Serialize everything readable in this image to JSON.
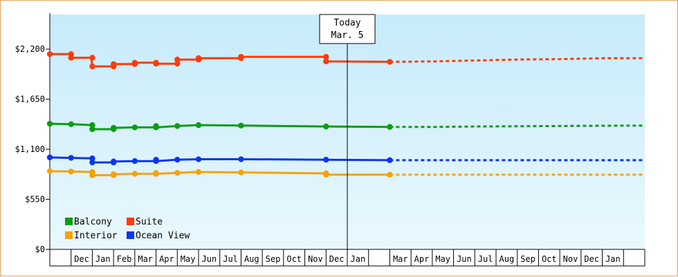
{
  "chart_data": {
    "type": "line",
    "title": "",
    "xlabel": "",
    "ylabel": "",
    "y_ticks": [
      "$0",
      "$550",
      "$1,100",
      "$1,650",
      "$2,200"
    ],
    "y_tick_values": [
      0,
      550,
      1100,
      1650,
      2200
    ],
    "ylim": [
      0,
      2580
    ],
    "grid": false,
    "legend_position": "bottom-left",
    "today_marker": {
      "line1": "Today",
      "line2": "Mar. 5",
      "at_month": 14
    },
    "month_labels": [
      "",
      "Dec",
      "Jan",
      "Feb",
      "Mar",
      "Apr",
      "May",
      "Jun",
      "Jul",
      "Aug",
      "Sep",
      "Oct",
      "Nov",
      "Dec",
      "Jan",
      "",
      "Mar",
      "Apr",
      "May",
      "Jun",
      "Jul",
      "Aug",
      "Sep",
      "Oct",
      "Nov",
      "Dec",
      "Jan",
      ""
    ],
    "xlim_months": [
      0,
      28
    ],
    "series": [
      {
        "name": "Suite",
        "color": "#ff3b0a",
        "history": [
          [
            0.0,
            2145
          ],
          [
            0.15,
            2145
          ],
          [
            1.0,
            2145
          ],
          [
            1.05,
            2105
          ],
          [
            1.95,
            2105
          ],
          [
            2.0,
            2010
          ],
          [
            2.9,
            2010
          ],
          [
            2.95,
            2035
          ],
          [
            3.9,
            2035
          ],
          [
            3.95,
            2050
          ],
          [
            4.95,
            2050
          ],
          [
            5.0,
            2040
          ],
          [
            5.95,
            2040
          ],
          [
            6.0,
            2085
          ],
          [
            6.95,
            2085
          ],
          [
            7.0,
            2100
          ],
          [
            8.95,
            2100
          ],
          [
            9.0,
            2115
          ],
          [
            12.95,
            2115
          ],
          [
            13.0,
            2065
          ],
          [
            16.0,
            2060
          ]
        ],
        "forecast": [
          [
            16.0,
            2060
          ],
          [
            18.0,
            2065
          ],
          [
            20.0,
            2075
          ],
          [
            22.0,
            2085
          ],
          [
            24.0,
            2090
          ],
          [
            26.0,
            2100
          ],
          [
            28.0,
            2100
          ]
        ]
      },
      {
        "name": "Balcony",
        "color": "#0c9d12",
        "history": [
          [
            0.0,
            1380
          ],
          [
            1.0,
            1375
          ],
          [
            1.05,
            1375
          ],
          [
            1.95,
            1365
          ],
          [
            2.0,
            1320
          ],
          [
            2.95,
            1320
          ],
          [
            3.0,
            1335
          ],
          [
            4.0,
            1340
          ],
          [
            5.0,
            1340
          ],
          [
            6.0,
            1355
          ],
          [
            7.0,
            1365
          ],
          [
            9.0,
            1360
          ],
          [
            13.0,
            1350
          ],
          [
            16.0,
            1345
          ]
        ],
        "forecast": [
          [
            16.0,
            1345
          ],
          [
            18.0,
            1345
          ],
          [
            20.0,
            1350
          ],
          [
            22.0,
            1352
          ],
          [
            24.0,
            1355
          ],
          [
            26.0,
            1358
          ],
          [
            28.0,
            1360
          ]
        ]
      },
      {
        "name": "Ocean View",
        "color": "#0b36f2",
        "history": [
          [
            0.0,
            1010
          ],
          [
            1.0,
            1005
          ],
          [
            1.95,
            1000
          ],
          [
            2.0,
            955
          ],
          [
            2.95,
            955
          ],
          [
            3.0,
            965
          ],
          [
            4.0,
            970
          ],
          [
            5.0,
            970
          ],
          [
            6.0,
            985
          ],
          [
            7.0,
            990
          ],
          [
            9.0,
            990
          ],
          [
            13.0,
            985
          ],
          [
            16.0,
            980
          ]
        ],
        "forecast": [
          [
            16.0,
            980
          ],
          [
            20.0,
            980
          ],
          [
            24.0,
            980
          ],
          [
            28.0,
            980
          ]
        ]
      },
      {
        "name": "Interior",
        "color": "#f7a20b",
        "history": [
          [
            0.0,
            860
          ],
          [
            1.0,
            855
          ],
          [
            1.95,
            850
          ],
          [
            2.0,
            815
          ],
          [
            2.95,
            815
          ],
          [
            3.0,
            825
          ],
          [
            4.0,
            830
          ],
          [
            5.0,
            830
          ],
          [
            6.0,
            840
          ],
          [
            7.0,
            850
          ],
          [
            9.0,
            845
          ],
          [
            13.0,
            835
          ],
          [
            13.05,
            820
          ],
          [
            16.0,
            820
          ]
        ],
        "forecast": [
          [
            16.0,
            820
          ],
          [
            20.0,
            820
          ],
          [
            24.0,
            820
          ],
          [
            28.0,
            820
          ]
        ]
      }
    ],
    "markers": {
      "Suite": [
        [
          0.0,
          2145
        ],
        [
          1.0,
          2145
        ],
        [
          1.0,
          2105
        ],
        [
          2.0,
          2105
        ],
        [
          2.0,
          2010
        ],
        [
          3.0,
          2010
        ],
        [
          3.0,
          2035
        ],
        [
          4.0,
          2035
        ],
        [
          4.0,
          2050
        ],
        [
          5.0,
          2050
        ],
        [
          5.0,
          2040
        ],
        [
          6.0,
          2040
        ],
        [
          6.0,
          2085
        ],
        [
          7.0,
          2085
        ],
        [
          7.0,
          2100
        ],
        [
          9.0,
          2100
        ],
        [
          9.0,
          2115
        ],
        [
          13.0,
          2115
        ],
        [
          13.0,
          2065
        ],
        [
          16.0,
          2060
        ]
      ],
      "Balcony": [
        [
          0.0,
          1380
        ],
        [
          1.0,
          1375
        ],
        [
          2.0,
          1365
        ],
        [
          2.0,
          1320
        ],
        [
          3.0,
          1320
        ],
        [
          3.0,
          1335
        ],
        [
          4.0,
          1340
        ],
        [
          5.0,
          1340
        ],
        [
          5.0,
          1355
        ],
        [
          6.0,
          1355
        ],
        [
          7.0,
          1365
        ],
        [
          9.0,
          1360
        ],
        [
          13.0,
          1350
        ],
        [
          16.0,
          1345
        ]
      ],
      "Ocean View": [
        [
          0.0,
          1010
        ],
        [
          1.0,
          1005
        ],
        [
          2.0,
          1000
        ],
        [
          2.0,
          955
        ],
        [
          3.0,
          955
        ],
        [
          3.0,
          965
        ],
        [
          4.0,
          970
        ],
        [
          5.0,
          970
        ],
        [
          5.0,
          985
        ],
        [
          6.0,
          985
        ],
        [
          7.0,
          990
        ],
        [
          9.0,
          990
        ],
        [
          13.0,
          985
        ],
        [
          16.0,
          980
        ]
      ],
      "Interior": [
        [
          0.0,
          860
        ],
        [
          1.0,
          855
        ],
        [
          2.0,
          850
        ],
        [
          2.0,
          815
        ],
        [
          3.0,
          815
        ],
        [
          3.0,
          825
        ],
        [
          4.0,
          830
        ],
        [
          5.0,
          830
        ],
        [
          5.0,
          840
        ],
        [
          6.0,
          840
        ],
        [
          7.0,
          850
        ],
        [
          9.0,
          845
        ],
        [
          13.0,
          835
        ],
        [
          13.0,
          820
        ],
        [
          16.0,
          820
        ]
      ]
    },
    "legend": [
      {
        "name": "Balcony",
        "color": "#0c9d12"
      },
      {
        "name": "Suite",
        "color": "#ff3b0a"
      },
      {
        "name": "Interior",
        "color": "#f7a20b"
      },
      {
        "name": "Ocean View",
        "color": "#0b36f2"
      }
    ]
  }
}
